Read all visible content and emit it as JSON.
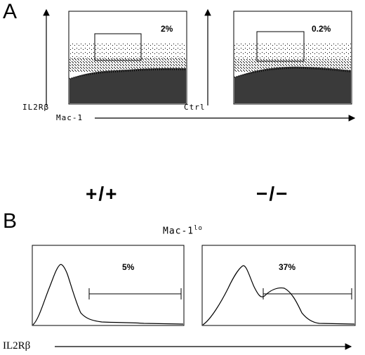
{
  "panel_a": {
    "letter": "A",
    "left_plot": {
      "y_label": "IL2Rβ",
      "gate_percent": "2%"
    },
    "right_plot": {
      "y_label": "Ctrl",
      "gate_percent": "0.2%"
    },
    "x_label": "Mac-1"
  },
  "panel_b": {
    "letter": "B",
    "genotype_left": "+/+",
    "genotype_right": "−/−",
    "gate_title": "Mac-1",
    "gate_title_sup": "lo",
    "left_hist": {
      "percent": "5%"
    },
    "right_hist": {
      "percent": "37%"
    },
    "x_label": "IL2Rβ"
  }
}
